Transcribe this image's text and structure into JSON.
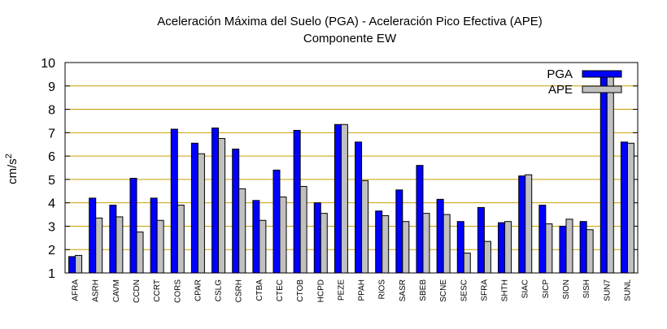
{
  "chart_data": {
    "type": "bar",
    "title": "Aceleración Máxima del Suelo (PGA) -  Aceleración Pico Efectiva (APE)",
    "subtitle": "Componente EW",
    "ylabel_base": "cm/s",
    "ylabel_exp": "2",
    "ylim": [
      1,
      10
    ],
    "yticks": [
      1,
      2,
      3,
      4,
      5,
      6,
      7,
      8,
      9,
      10
    ],
    "grid": true,
    "legend_position": "top-right",
    "categories": [
      "AFRA",
      "ASRH",
      "CAVM",
      "CCDN",
      "CCRT",
      "CORS",
      "CPAR",
      "CSLG",
      "CSRH",
      "CTBA",
      "CTEC",
      "CTOB",
      "HCPD",
      "PEZE",
      "PPAH",
      "RIOS",
      "SASR",
      "SBEB",
      "SCNE",
      "SESC",
      "SFRA",
      "SHTH",
      "SIAC",
      "SICP",
      "SION",
      "SISH",
      "SUN7",
      "SUNL"
    ],
    "series": [
      {
        "name": "PGA",
        "color": "#0000ff",
        "values": [
          1.7,
          4.2,
          3.9,
          5.05,
          4.2,
          7.15,
          6.55,
          7.2,
          6.3,
          4.1,
          5.4,
          7.1,
          4.0,
          7.35,
          6.6,
          3.65,
          4.55,
          5.6,
          4.15,
          3.2,
          3.8,
          3.15,
          5.15,
          3.9,
          3.0,
          3.2,
          9.45,
          6.6
        ]
      },
      {
        "name": "APE",
        "color": "#c0c0c0",
        "values": [
          1.75,
          3.35,
          3.4,
          2.75,
          3.25,
          3.9,
          6.1,
          6.75,
          4.6,
          3.25,
          4.25,
          4.7,
          3.55,
          7.35,
          4.95,
          3.45,
          3.2,
          3.55,
          3.5,
          1.85,
          2.35,
          3.2,
          5.2,
          3.1,
          3.3,
          2.85,
          9.6,
          6.55
        ]
      }
    ]
  }
}
